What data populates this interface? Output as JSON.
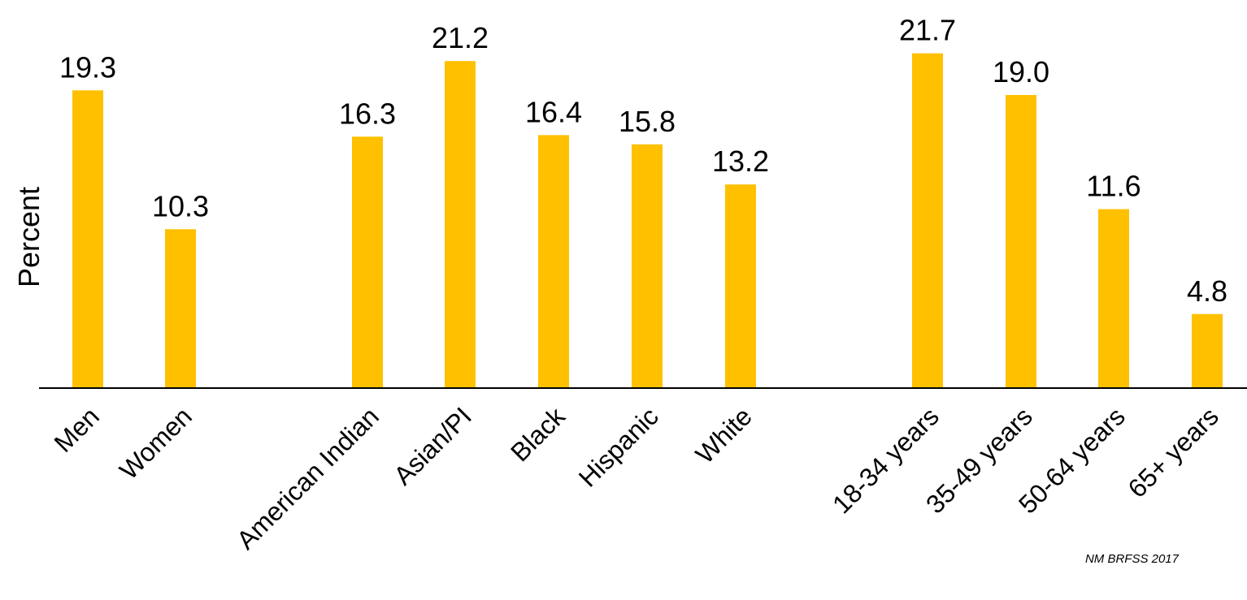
{
  "chart_data": {
    "type": "bar",
    "title": "",
    "xlabel": "",
    "ylabel": "Percent",
    "ylim": [
      0,
      25
    ],
    "grid": false,
    "legend": "none",
    "bar_color": "#FFC000",
    "axis_color": "#000000",
    "categories": [
      "Men",
      "Women",
      "American Indian",
      "Asian/PI",
      "Black",
      "Hispanic",
      "White",
      "18-34 years",
      "35-49 years",
      "50-64 years",
      "65+ years"
    ],
    "values": [
      19.3,
      10.3,
      16.3,
      21.2,
      16.4,
      15.8,
      13.2,
      21.7,
      19.0,
      11.6,
      4.8
    ],
    "value_labels": [
      "19.3",
      "10.3",
      "16.3",
      "21.2",
      "16.4",
      "15.8",
      "13.2",
      "21.7",
      "19.0",
      "11.6",
      "4.8"
    ]
  },
  "source": "NM BRFSS 2017"
}
